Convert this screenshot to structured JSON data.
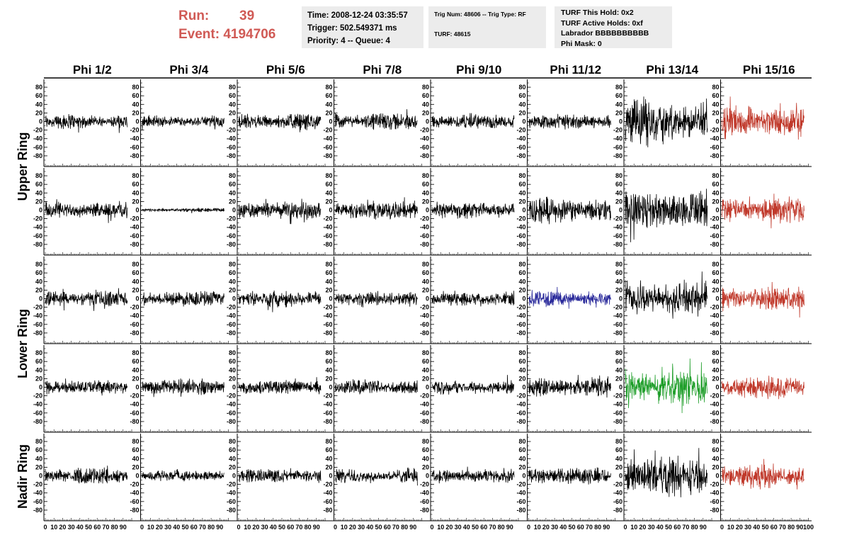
{
  "header": {
    "run_label": "Run:",
    "run_value": "39",
    "event_label": "Event:",
    "event_value": "4194706",
    "time_line": "Time: 2008-12-24 03:35:57",
    "trigger_line": "Trigger: 502.549371 ms",
    "priority_line": "Priority: 4 -- Queue: 4",
    "trig_num_line": "Trig Num: 48606 -- Trig Type: RF",
    "turf_line": "TURF: 48615",
    "turf_hold_line": "TURF This Hold: 0x2",
    "turf_active_line": "TURF Active Holds: 0xf",
    "labrador_line": "Labrador BBBBBBBBBB",
    "phi_mask_line": "Phi Mask: 0"
  },
  "chart_data": {
    "type": "line",
    "columns": [
      "Phi 1/2",
      "Phi 3/4",
      "Phi 5/6",
      "Phi 7/8",
      "Phi 9/10",
      "Phi 11/12",
      "Phi 13/14",
      "Phi 15/16"
    ],
    "row_labels": [
      "Upper Ring",
      "Lower Ring",
      "Nadir Ring"
    ],
    "row_label_spans": [
      [
        0,
        1
      ],
      [
        2,
        3
      ],
      [
        4,
        4
      ]
    ],
    "ylim": [
      -95,
      95
    ],
    "yticks": [
      -80,
      -60,
      -40,
      -20,
      0,
      20,
      40,
      60,
      80
    ],
    "xlim": [
      0,
      100
    ],
    "xticks": [
      0,
      10,
      20,
      30,
      40,
      50,
      60,
      70,
      80,
      90,
      100
    ],
    "colors": {
      "default": "#000000",
      "red": "#c0392b",
      "blue": "#2c2c9c",
      "green": "#1f9e2a"
    },
    "panels": [
      [
        {
          "amp": 15,
          "color": "default"
        },
        {
          "amp": 12,
          "color": "default"
        },
        {
          "amp": 16,
          "color": "default"
        },
        {
          "amp": 17,
          "color": "default"
        },
        {
          "amp": 15,
          "color": "default"
        },
        {
          "amp": 15,
          "color": "default"
        },
        {
          "amp": 45,
          "color": "default"
        },
        {
          "amp": 32,
          "color": "red"
        }
      ],
      [
        {
          "amp": 16,
          "color": "default"
        },
        {
          "amp": 4,
          "color": "default"
        },
        {
          "amp": 18,
          "color": "default"
        },
        {
          "amp": 20,
          "color": "default"
        },
        {
          "amp": 16,
          "color": "default"
        },
        {
          "amp": 25,
          "color": "default"
        },
        {
          "amp": 40,
          "color": "default"
        },
        {
          "amp": 25,
          "color": "red"
        }
      ],
      [
        {
          "amp": 16,
          "color": "default"
        },
        {
          "amp": 15,
          "color": "default"
        },
        {
          "amp": 17,
          "color": "default"
        },
        {
          "amp": 16,
          "color": "default"
        },
        {
          "amp": 15,
          "color": "default"
        },
        {
          "amp": 15,
          "color": "blue"
        },
        {
          "amp": 35,
          "color": "default"
        },
        {
          "amp": 25,
          "color": "red"
        }
      ],
      [
        {
          "amp": 14,
          "color": "default"
        },
        {
          "amp": 17,
          "color": "default"
        },
        {
          "amp": 15,
          "color": "default"
        },
        {
          "amp": 15,
          "color": "default"
        },
        {
          "amp": 14,
          "color": "default"
        },
        {
          "amp": 20,
          "color": "default"
        },
        {
          "amp": 35,
          "color": "green"
        },
        {
          "amp": 22,
          "color": "red"
        }
      ],
      [
        {
          "amp": 17,
          "color": "default"
        },
        {
          "amp": 12,
          "color": "default"
        },
        {
          "amp": 14,
          "color": "default"
        },
        {
          "amp": 14,
          "color": "default"
        },
        {
          "amp": 14,
          "color": "default"
        },
        {
          "amp": 17,
          "color": "default"
        },
        {
          "amp": 40,
          "color": "default"
        },
        {
          "amp": 25,
          "color": "red"
        }
      ]
    ]
  }
}
